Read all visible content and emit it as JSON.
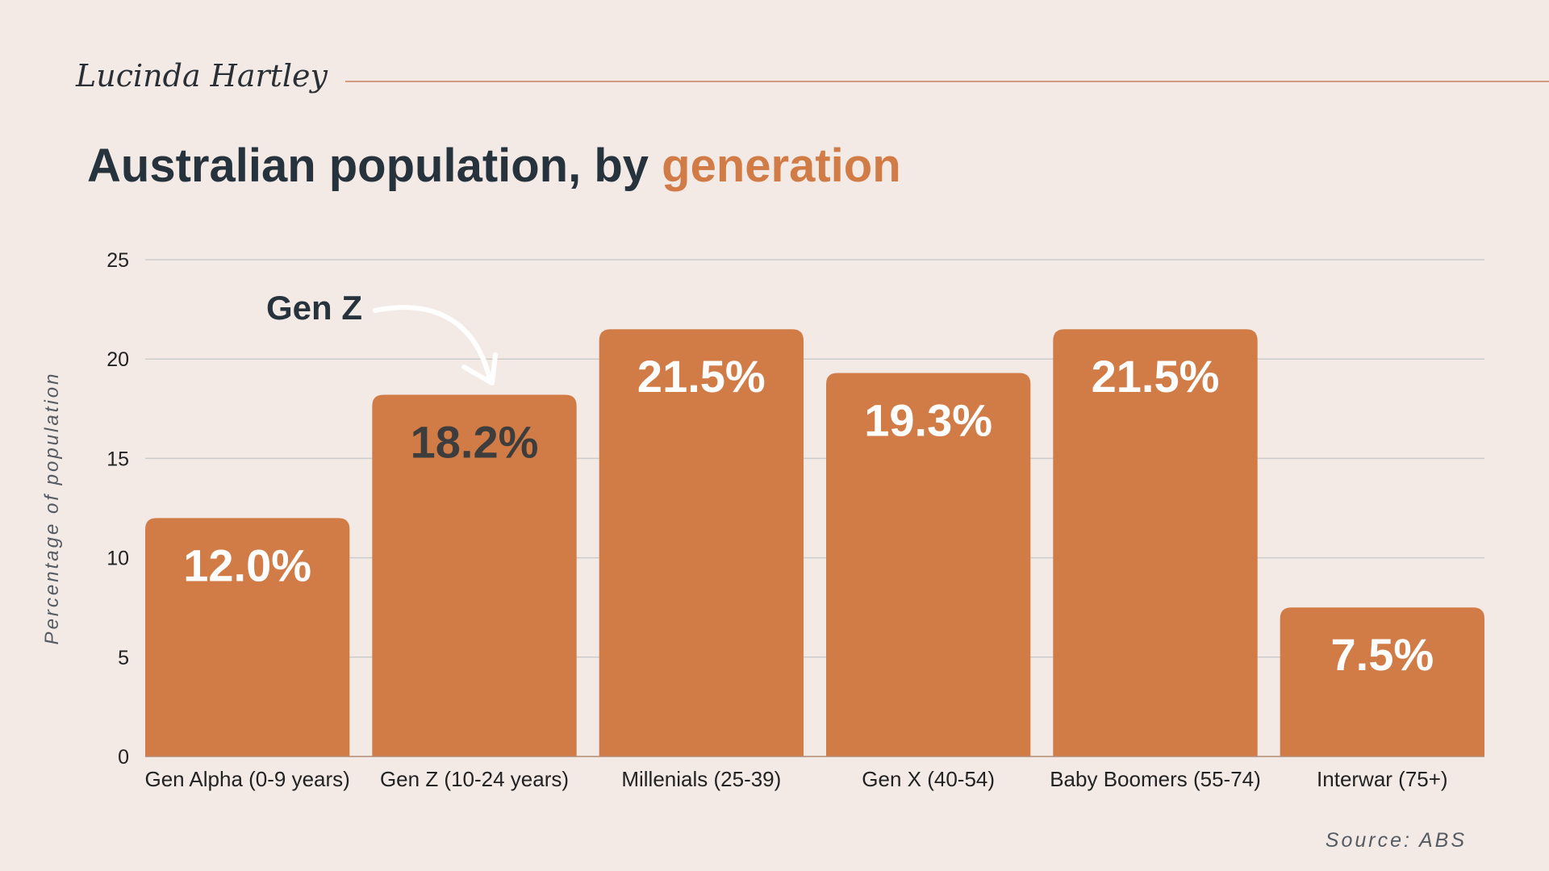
{
  "brand": "Lucinda Hartley",
  "title_main": "Australian population, by ",
  "title_accent": "generation",
  "source": "Source: ABS",
  "annotation": "Gen Z",
  "colors": {
    "bar": "#d17c47",
    "label_light": "#ffffff",
    "label_dark": "#3d3d3d",
    "grid": "#cccccc",
    "background": "#f3eae6"
  },
  "chart_data": {
    "type": "bar",
    "categories": [
      "Gen Alpha (0-9 years)",
      "Gen Z (10-24 years)",
      "Millenials (25-39)",
      "Gen X (40-54)",
      "Baby Boomers (55-74)",
      "Interwar (75+)"
    ],
    "values": [
      12.0,
      18.2,
      21.5,
      19.3,
      21.5,
      7.5
    ],
    "data_labels": [
      "12.0%",
      "18.2%",
      "21.5%",
      "19.3%",
      "21.5%",
      "7.5%"
    ],
    "highlight_index": 1,
    "ylabel": "Percentage of population",
    "ylim": [
      0,
      25
    ],
    "yticks": [
      0,
      5,
      10,
      15,
      20,
      25
    ],
    "grid": true
  }
}
